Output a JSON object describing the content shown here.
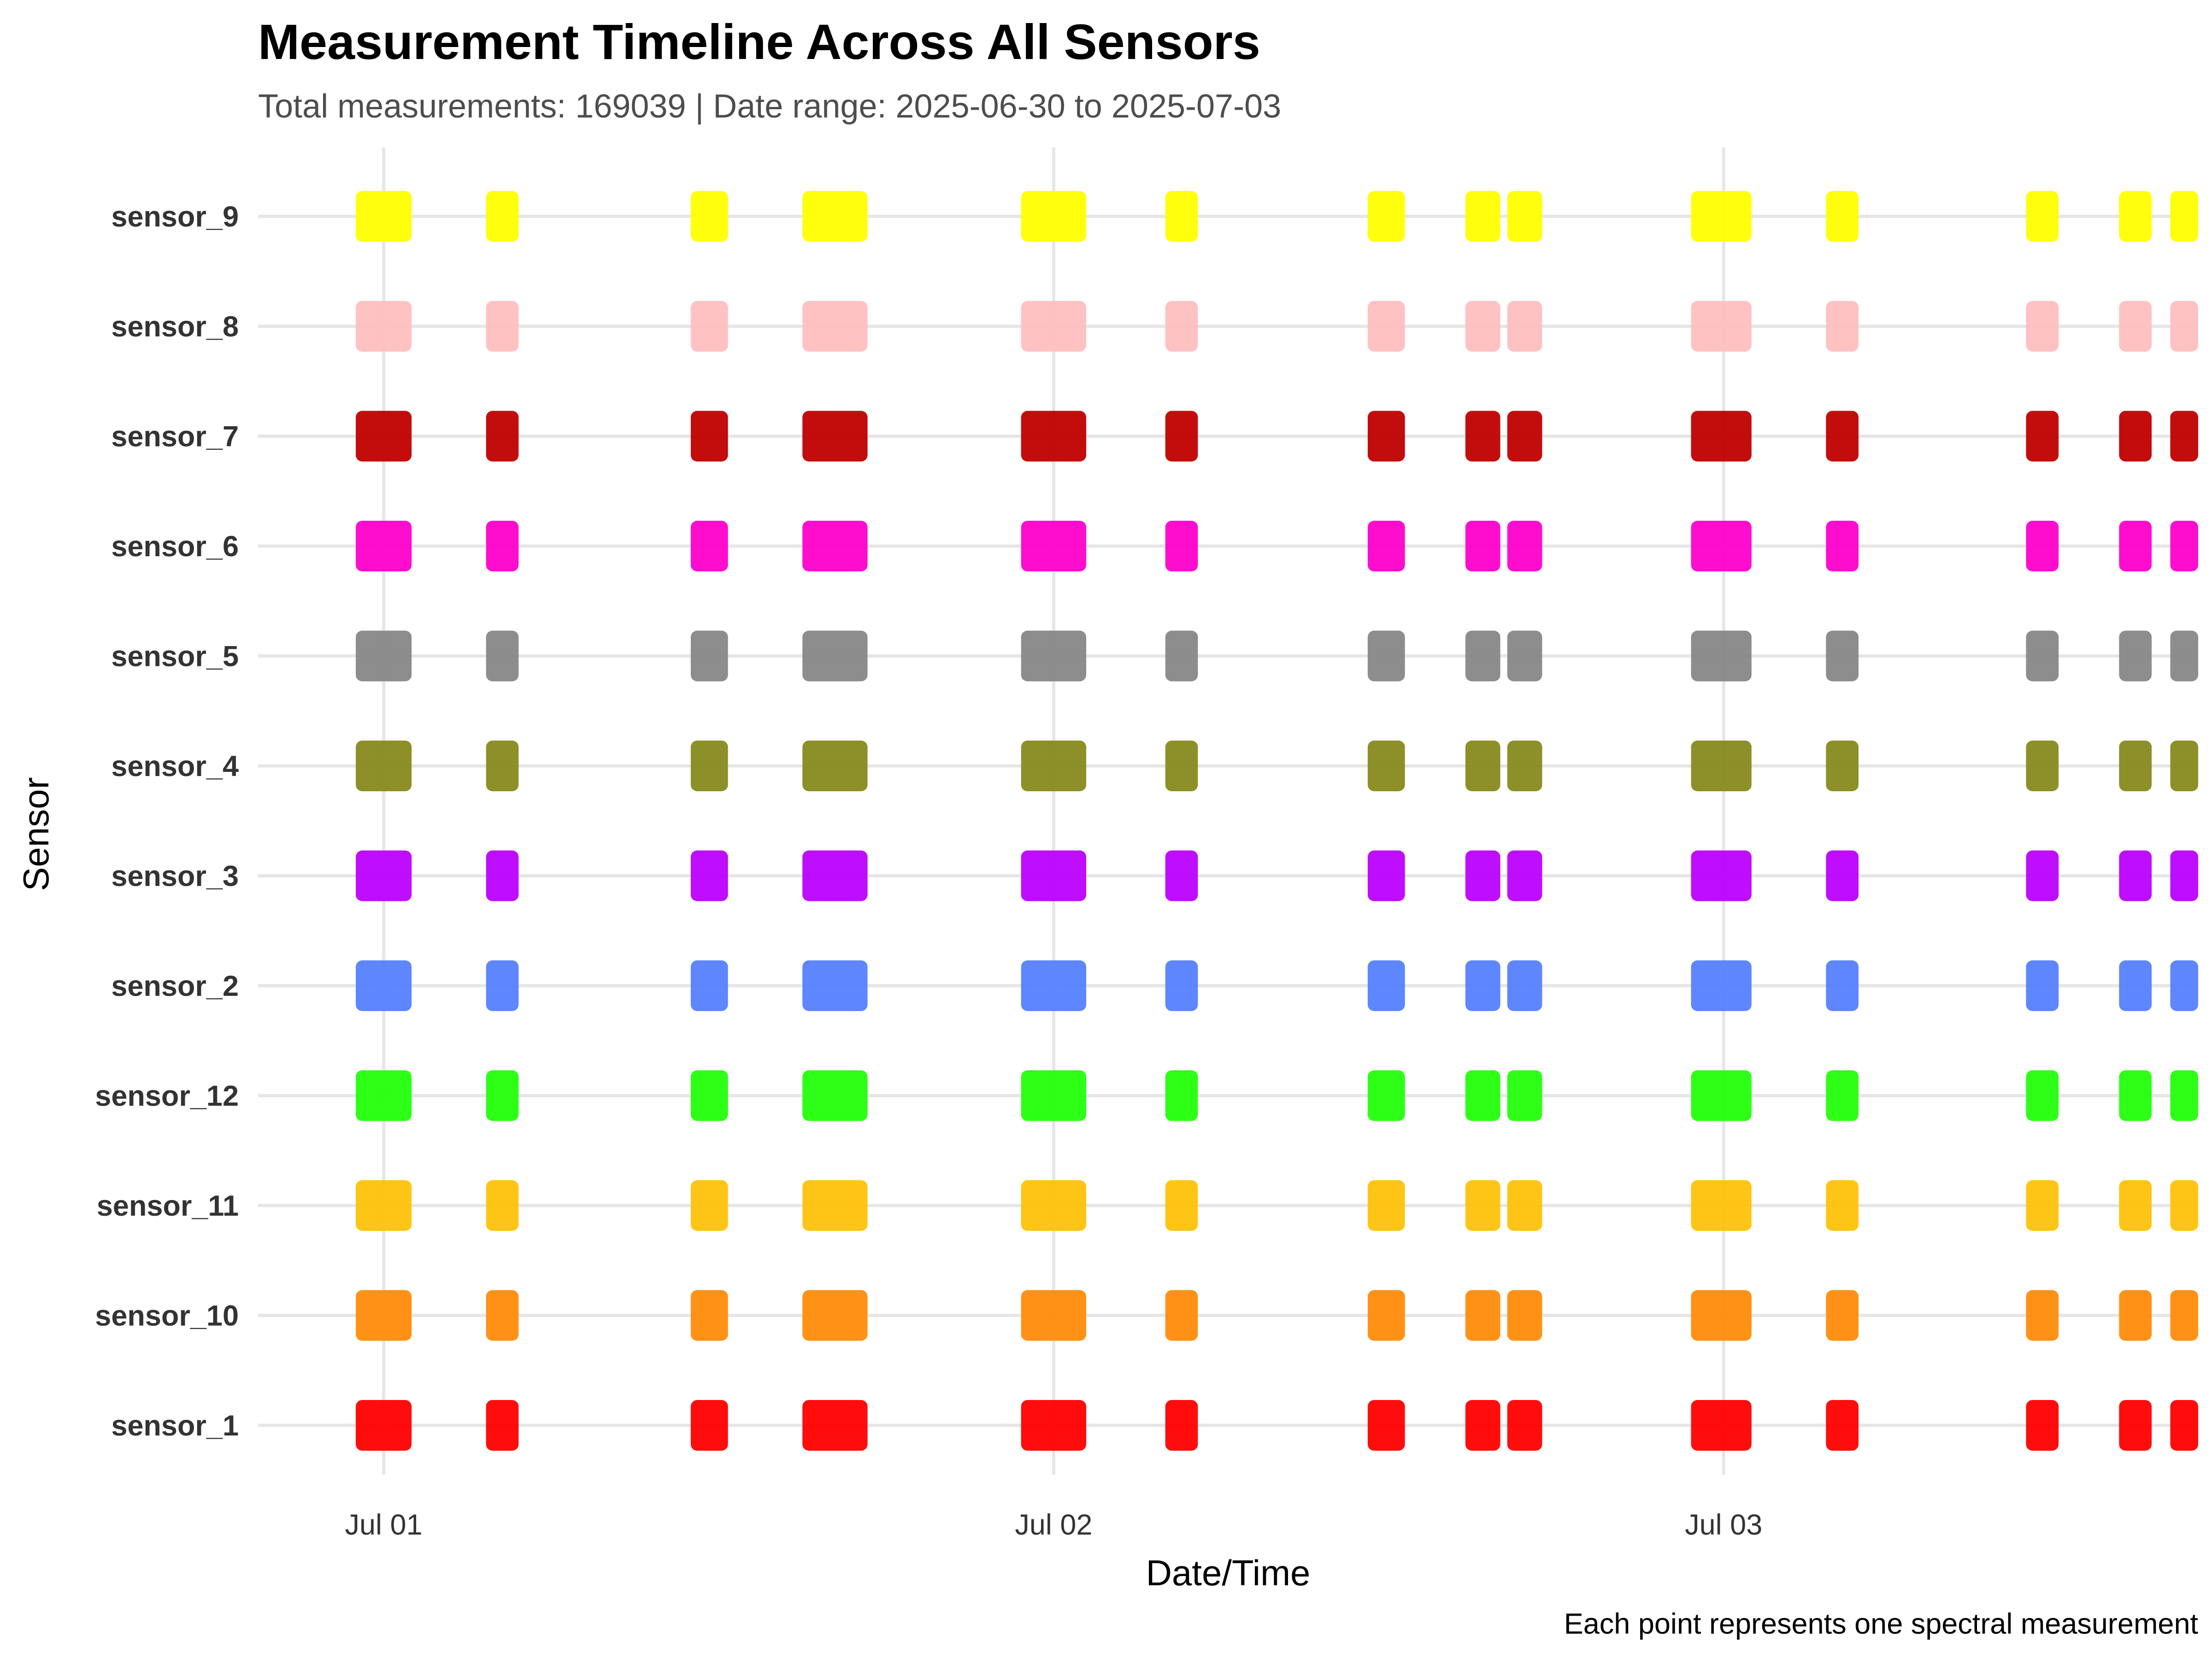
{
  "chart_data": {
    "type": "scatter",
    "title": "Measurement Timeline Across All Sensors",
    "subtitle": "Total measurements: 169039 | Date range: 2025-06-30 to 2025-07-03",
    "xlabel": "Date/Time",
    "ylabel": "Sensor",
    "caption": "Each point represents one spectral measurement",
    "grid": true,
    "legend": "none",
    "x_axis": {
      "type": "datetime",
      "range": [
        "2025-06-30T19:30",
        "2025-07-03T17:00"
      ],
      "ticks": [
        {
          "value": "2025-07-01T00:00",
          "label": "Jul 01"
        },
        {
          "value": "2025-07-02T00:00",
          "label": "Jul 02"
        },
        {
          "value": "2025-07-03T00:00",
          "label": "Jul 03"
        }
      ]
    },
    "categories": [
      "sensor_1",
      "sensor_10",
      "sensor_11",
      "sensor_12",
      "sensor_2",
      "sensor_3",
      "sensor_4",
      "sensor_5",
      "sensor_6",
      "sensor_7",
      "sensor_8",
      "sensor_9"
    ],
    "measurement_sessions": [
      {
        "start": "2025-06-30T23:00",
        "end": "2025-07-01T01:00"
      },
      {
        "start": "2025-07-01T03:40",
        "end": "2025-07-01T04:50"
      },
      {
        "start": "2025-07-01T11:00",
        "end": "2025-07-01T12:20"
      },
      {
        "start": "2025-07-01T15:00",
        "end": "2025-07-01T17:20"
      },
      {
        "start": "2025-07-01T22:50",
        "end": "2025-07-02T01:10"
      },
      {
        "start": "2025-07-02T04:00",
        "end": "2025-07-02T05:10"
      },
      {
        "start": "2025-07-02T11:15",
        "end": "2025-07-02T12:35"
      },
      {
        "start": "2025-07-02T14:45",
        "end": "2025-07-02T16:00"
      },
      {
        "start": "2025-07-02T16:15",
        "end": "2025-07-02T17:30"
      },
      {
        "start": "2025-07-02T22:50",
        "end": "2025-07-03T01:00"
      },
      {
        "start": "2025-07-03T03:40",
        "end": "2025-07-03T04:50"
      },
      {
        "start": "2025-07-03T10:50",
        "end": "2025-07-03T12:00"
      },
      {
        "start": "2025-07-03T14:10",
        "end": "2025-07-03T15:20"
      },
      {
        "start": "2025-07-03T16:00",
        "end": "2025-07-03T17:00"
      }
    ],
    "series": [
      {
        "sensor": "sensor_1",
        "color": "#FF0000"
      },
      {
        "sensor": "sensor_10",
        "color": "#FF8C0A"
      },
      {
        "sensor": "sensor_11",
        "color": "#FFC20A"
      },
      {
        "sensor": "sensor_12",
        "color": "#22FF0A"
      },
      {
        "sensor": "sensor_2",
        "color": "#5580FF"
      },
      {
        "sensor": "sensor_3",
        "color": "#BB00FF"
      },
      {
        "sensor": "sensor_4",
        "color": "#878A1E"
      },
      {
        "sensor": "sensor_5",
        "color": "#878787"
      },
      {
        "sensor": "sensor_6",
        "color": "#FF00CC"
      },
      {
        "sensor": "sensor_7",
        "color": "#C00000"
      },
      {
        "sensor": "sensor_8",
        "color": "#FFBFBF"
      },
      {
        "sensor": "sensor_9",
        "color": "#FFFF00"
      }
    ]
  }
}
